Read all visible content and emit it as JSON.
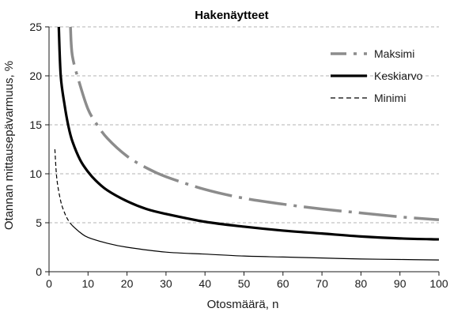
{
  "chart_data": {
    "type": "line",
    "title": "Hakenäytteet",
    "xlabel": "Otosmäärä, n",
    "ylabel": "Otannan mittausepävarmuus, %",
    "xlim": [
      0,
      100
    ],
    "ylim": [
      0,
      25
    ],
    "x_ticks": [
      "0",
      "10",
      "20",
      "30",
      "40",
      "50",
      "60",
      "70",
      "80",
      "90",
      "100"
    ],
    "y_ticks": [
      "0",
      "5",
      "10",
      "15",
      "20",
      "25"
    ],
    "grid": "horizontal dashed",
    "legend_position": "top-right",
    "series": [
      {
        "name": "Maksimi",
        "color": "#8c8c8c",
        "style": "dash-dot",
        "x": [
          5.5,
          6,
          8,
          10,
          12,
          15,
          20,
          25,
          30,
          40,
          50,
          60,
          70,
          80,
          90,
          100
        ],
        "values": [
          25,
          22,
          19,
          16.6,
          15.2,
          13.6,
          11.8,
          10.6,
          9.7,
          8.4,
          7.5,
          6.9,
          6.4,
          6.0,
          5.6,
          5.3
        ]
      },
      {
        "name": "Keskiarvo",
        "color": "#000000",
        "style": "solid-thick",
        "x": [
          2.5,
          3,
          4,
          5,
          6,
          8,
          10,
          12,
          15,
          20,
          25,
          30,
          40,
          50,
          60,
          70,
          80,
          90,
          100
        ],
        "values": [
          25,
          20,
          17,
          14.8,
          13.3,
          11.4,
          10.2,
          9.3,
          8.3,
          7.2,
          6.4,
          5.9,
          5.1,
          4.6,
          4.2,
          3.9,
          3.6,
          3.4,
          3.3
        ]
      },
      {
        "name": "Minimi",
        "color": "#000000",
        "style": "dashed-thin",
        "x": [
          1.5,
          2,
          3,
          4,
          5,
          6,
          8,
          10,
          15,
          20,
          30,
          40,
          50,
          60,
          70,
          80,
          90,
          100
        ],
        "values": [
          12.5,
          9.5,
          7.2,
          6.0,
          5.2,
          4.7,
          4.0,
          3.5,
          2.9,
          2.5,
          2.0,
          1.8,
          1.6,
          1.5,
          1.4,
          1.3,
          1.25,
          1.2
        ]
      }
    ]
  }
}
